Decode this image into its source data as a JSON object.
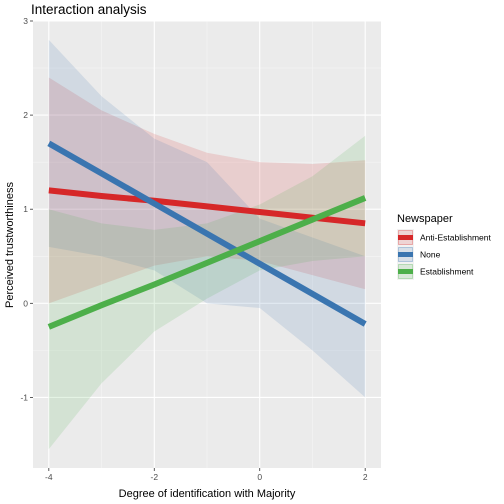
{
  "chart_data": {
    "type": "line",
    "title": "Interaction analysis",
    "xlabel": "Degree of identification with Majority",
    "ylabel": "Perceived trustworthiness",
    "xlim": [
      -4.3,
      2.3
    ],
    "ylim": [
      -1.75,
      3.0
    ],
    "x_ticks": [
      -4,
      -2,
      0,
      2
    ],
    "y_ticks": [
      -1,
      0,
      1,
      2,
      3
    ],
    "grid": true,
    "legend_title": "Newspaper",
    "legend_position": "right",
    "x": [
      -4,
      -3,
      -2,
      -1,
      0,
      1,
      2
    ],
    "series": [
      {
        "name": "Anti-Establishment",
        "color": "#d62728",
        "values": [
          1.2,
          1.14,
          1.09,
          1.03,
          0.97,
          0.91,
          0.85
        ],
        "lower": [
          0.0,
          0.2,
          0.4,
          0.5,
          0.45,
          0.3,
          0.15
        ],
        "upper": [
          2.4,
          2.05,
          1.8,
          1.6,
          1.5,
          1.48,
          1.52
        ]
      },
      {
        "name": "None",
        "color": "#3a75b0",
        "values": [
          1.7,
          1.38,
          1.06,
          0.74,
          0.42,
          0.1,
          -0.22
        ],
        "lower": [
          0.6,
          0.5,
          0.35,
          0.0,
          -0.05,
          -0.5,
          -1.0
        ],
        "upper": [
          2.8,
          2.2,
          1.75,
          1.5,
          0.9,
          0.7,
          0.5
        ]
      },
      {
        "name": "Establishment",
        "color": "#4daf4a",
        "values": [
          -0.25,
          -0.02,
          0.2,
          0.43,
          0.66,
          0.89,
          1.12
        ],
        "lower": [
          -1.55,
          -0.85,
          -0.3,
          0.05,
          0.35,
          0.45,
          0.5
        ],
        "upper": [
          1.0,
          0.85,
          0.78,
          0.85,
          1.05,
          1.35,
          1.78
        ]
      }
    ]
  }
}
